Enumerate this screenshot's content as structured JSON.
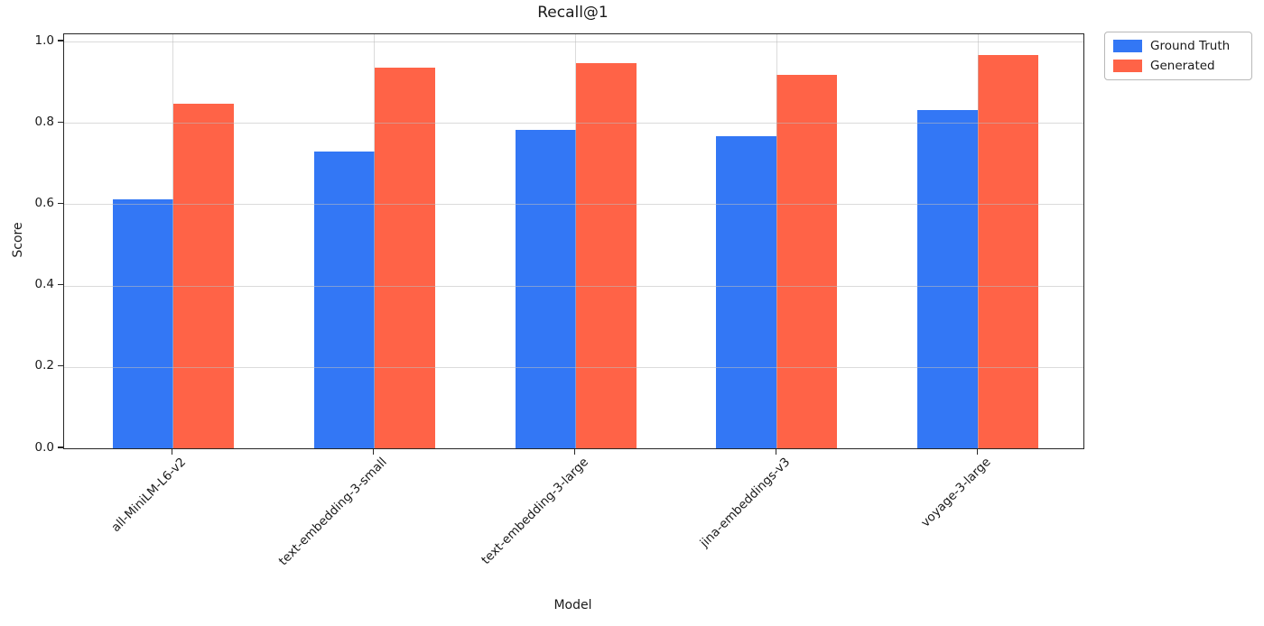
{
  "chart_data": {
    "type": "bar",
    "title": "Recall@1",
    "xlabel": "Model",
    "ylabel": "Score",
    "categories": [
      "all-MiniLM-L6-v2",
      "text-embedding-3-small",
      "text-embedding-3-large",
      "jina-embeddings-v3",
      "voyage-3-large"
    ],
    "series": [
      {
        "name": "Ground Truth",
        "color": "#3377f5",
        "values": [
          0.613,
          0.729,
          0.782,
          0.767,
          0.832
        ]
      },
      {
        "name": "Generated",
        "color": "#ff6347",
        "values": [
          0.847,
          0.936,
          0.946,
          0.918,
          0.966
        ]
      }
    ],
    "yticks": [
      0.0,
      0.2,
      0.4,
      0.6,
      0.8,
      1.0
    ],
    "ylim": [
      0,
      1.018
    ],
    "grid": true,
    "legend_position": "outside-top-right"
  }
}
